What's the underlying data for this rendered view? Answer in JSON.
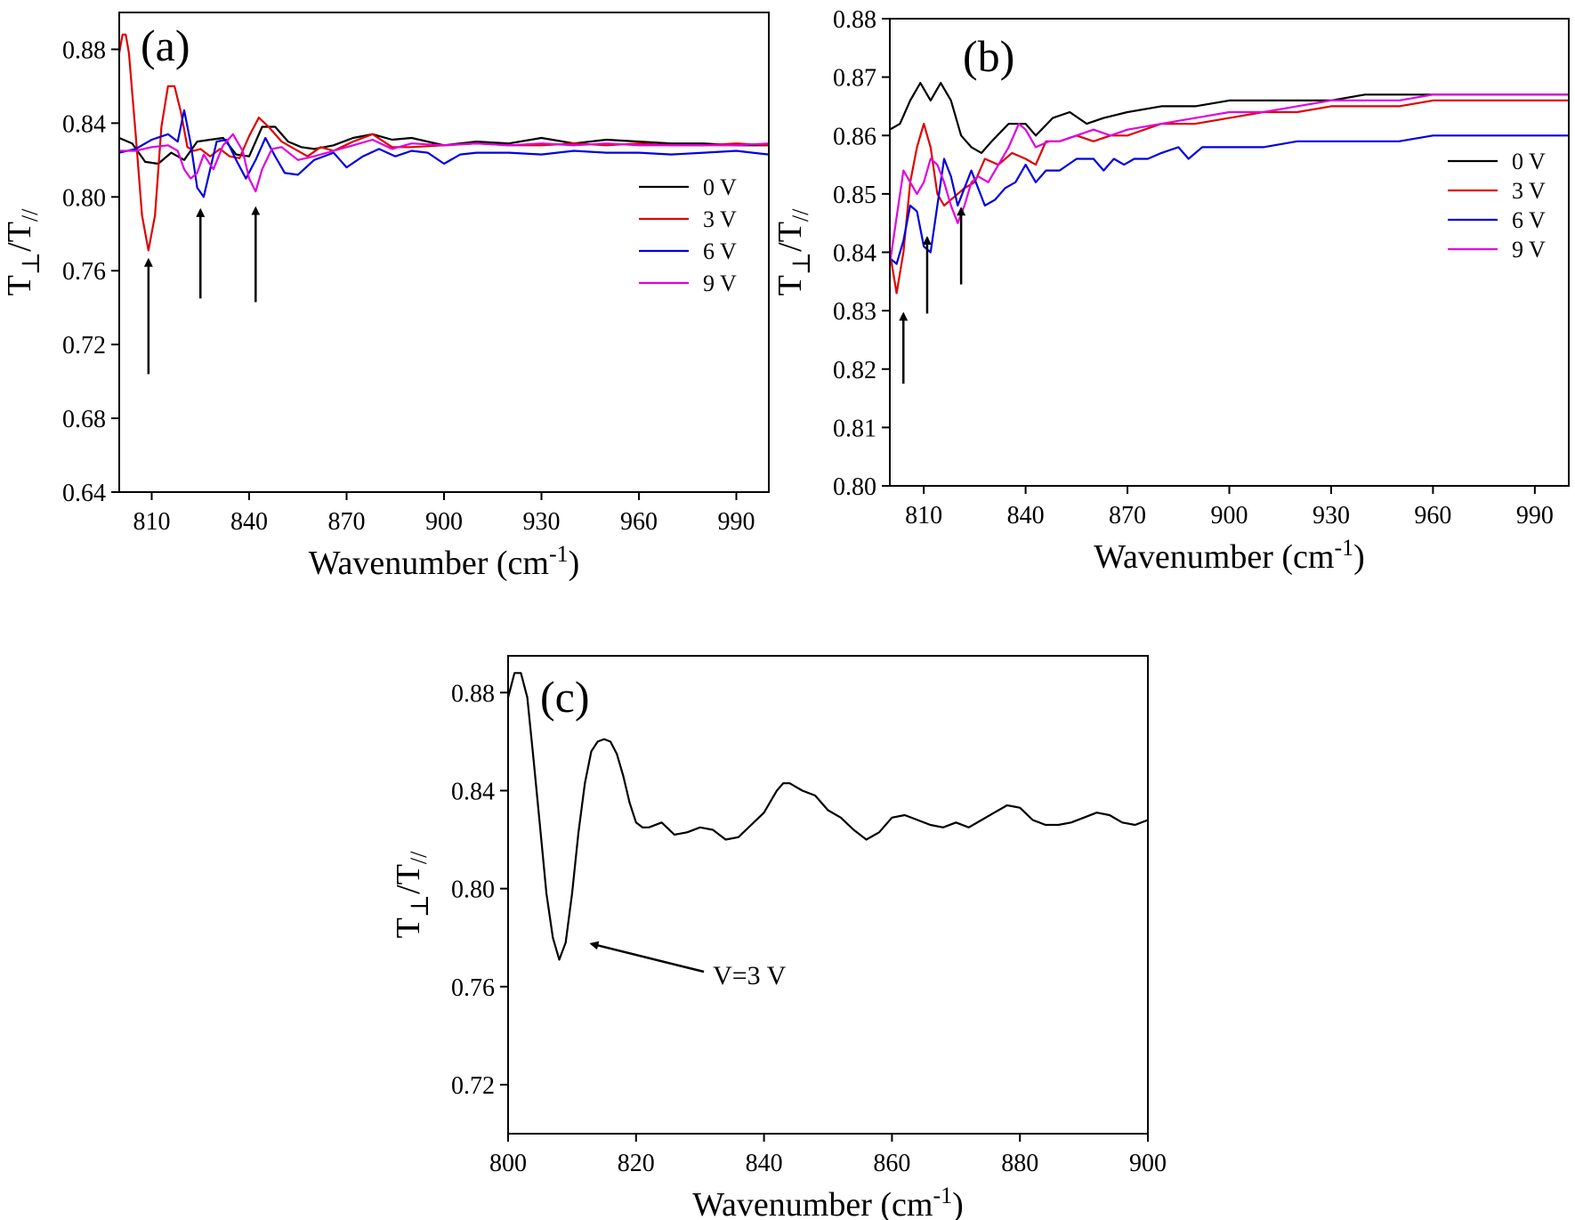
{
  "chart_data": [
    {
      "panel_label": "(a)",
      "type": "line",
      "xlabel": "Wavenumber (cm",
      "xlabel_sup": "-1",
      "xlabel_close": ")",
      "ylabel_T": "T",
      "ylabel_perp": "⊥",
      "ylabel_slash": "/T",
      "ylabel_par": "//",
      "xlim": [
        800,
        1000
      ],
      "ylim": [
        0.64,
        0.9
      ],
      "xticks": [
        "810",
        "840",
        "870",
        "900",
        "930",
        "960",
        "990"
      ],
      "xtick_values": [
        810,
        840,
        870,
        900,
        930,
        960,
        990
      ],
      "yticks": [
        "0.64",
        "0.68",
        "0.72",
        "0.76",
        "0.80",
        "0.84",
        "0.88"
      ],
      "ytick_values": [
        0.64,
        0.68,
        0.72,
        0.76,
        0.8,
        0.84,
        0.88
      ],
      "legend": "right",
      "arrows": [
        {
          "x": 809,
          "y_from": 0.704,
          "y_to": 0.766
        },
        {
          "x": 825,
          "y_from": 0.745,
          "y_to": 0.793
        },
        {
          "x": 842,
          "y_from": 0.743,
          "y_to": 0.794
        }
      ],
      "series": [
        {
          "name": "0 V",
          "color": "#000000",
          "x": [
            800,
            804,
            808,
            812,
            816,
            820,
            824,
            828,
            832,
            836,
            840,
            844,
            848,
            852,
            856,
            860,
            866,
            872,
            878,
            884,
            890,
            900,
            910,
            920,
            930,
            940,
            950,
            960,
            970,
            980,
            990,
            1000
          ],
          "y": [
            0.832,
            0.829,
            0.819,
            0.818,
            0.824,
            0.82,
            0.83,
            0.831,
            0.832,
            0.823,
            0.822,
            0.838,
            0.838,
            0.83,
            0.827,
            0.826,
            0.828,
            0.832,
            0.834,
            0.831,
            0.832,
            0.828,
            0.83,
            0.829,
            0.832,
            0.829,
            0.831,
            0.83,
            0.829,
            0.829,
            0.828,
            0.828
          ]
        },
        {
          "name": "3 V",
          "color": "#e00000",
          "x": [
            800,
            801,
            802,
            803,
            805,
            807,
            809,
            811,
            813,
            815,
            817,
            819,
            821,
            823,
            825,
            828,
            831,
            834,
            837,
            840,
            843,
            846,
            850,
            854,
            858,
            862,
            866,
            872,
            878,
            884,
            890,
            900,
            910,
            920,
            930,
            940,
            950,
            960,
            970,
            980,
            990,
            1000
          ],
          "y": [
            0.878,
            0.888,
            0.888,
            0.878,
            0.835,
            0.79,
            0.771,
            0.79,
            0.838,
            0.86,
            0.86,
            0.846,
            0.827,
            0.825,
            0.826,
            0.822,
            0.826,
            0.822,
            0.821,
            0.833,
            0.843,
            0.838,
            0.83,
            0.826,
            0.822,
            0.827,
            0.825,
            0.83,
            0.834,
            0.827,
            0.827,
            0.828,
            0.829,
            0.828,
            0.828,
            0.829,
            0.828,
            0.829,
            0.828,
            0.828,
            0.829,
            0.828
          ]
        },
        {
          "name": "6 V",
          "color": "#0000e0",
          "x": [
            800,
            805,
            810,
            815,
            818,
            820,
            822,
            824,
            826,
            828,
            830,
            833,
            836,
            839,
            842,
            845,
            848,
            851,
            855,
            860,
            866,
            870,
            875,
            880,
            885,
            890,
            895,
            900,
            905,
            910,
            920,
            930,
            940,
            950,
            960,
            970,
            980,
            990,
            995,
            1000
          ],
          "y": [
            0.824,
            0.826,
            0.831,
            0.834,
            0.83,
            0.847,
            0.829,
            0.805,
            0.8,
            0.815,
            0.83,
            0.831,
            0.82,
            0.81,
            0.82,
            0.832,
            0.822,
            0.813,
            0.812,
            0.82,
            0.824,
            0.816,
            0.822,
            0.826,
            0.822,
            0.825,
            0.824,
            0.818,
            0.823,
            0.824,
            0.824,
            0.823,
            0.825,
            0.824,
            0.824,
            0.823,
            0.824,
            0.825,
            0.824,
            0.823
          ]
        },
        {
          "name": "9 V",
          "color": "#e000e0",
          "x": [
            800,
            805,
            810,
            815,
            818,
            820,
            822,
            824,
            826,
            829,
            832,
            835,
            838,
            840,
            842,
            844,
            847,
            850,
            855,
            860,
            866,
            872,
            878,
            884,
            890,
            900,
            910,
            920,
            930,
            940,
            950,
            960,
            970,
            980,
            990,
            1000
          ],
          "y": [
            0.825,
            0.825,
            0.827,
            0.828,
            0.825,
            0.815,
            0.81,
            0.813,
            0.823,
            0.815,
            0.828,
            0.834,
            0.825,
            0.81,
            0.803,
            0.815,
            0.826,
            0.827,
            0.82,
            0.822,
            0.825,
            0.828,
            0.831,
            0.826,
            0.829,
            0.828,
            0.829,
            0.828,
            0.829,
            0.828,
            0.829,
            0.828,
            0.828,
            0.828,
            0.828,
            0.829
          ]
        }
      ]
    },
    {
      "panel_label": "(b)",
      "type": "line",
      "xlabel": "Wavenumber (cm",
      "xlabel_sup": "-1",
      "xlabel_close": ")",
      "ylabel_T": "T",
      "ylabel_perp": "⊥",
      "ylabel_slash": "/T",
      "ylabel_par": "//",
      "xlim": [
        800,
        1000
      ],
      "ylim": [
        0.8,
        0.88
      ],
      "xticks": [
        "810",
        "840",
        "870",
        "900",
        "930",
        "960",
        "990"
      ],
      "xtick_values": [
        810,
        840,
        870,
        900,
        930,
        960,
        990
      ],
      "yticks": [
        "0.80",
        "0.81",
        "0.82",
        "0.83",
        "0.84",
        "0.85",
        "0.86",
        "0.87",
        "0.88"
      ],
      "ytick_values": [
        0.8,
        0.81,
        0.82,
        0.83,
        0.84,
        0.85,
        0.86,
        0.87,
        0.88
      ],
      "legend": "right",
      "arrows": [
        {
          "x": 804,
          "y_from": 0.8175,
          "y_to": 0.8295
        },
        {
          "x": 811,
          "y_from": 0.8295,
          "y_to": 0.8425
        },
        {
          "x": 821,
          "y_from": 0.8345,
          "y_to": 0.8475
        }
      ],
      "series": [
        {
          "name": "0 V",
          "color": "#000000",
          "x": [
            800,
            803,
            806,
            809,
            812,
            815,
            818,
            821,
            824,
            827,
            830,
            835,
            840,
            843,
            848,
            853,
            858,
            863,
            870,
            880,
            890,
            900,
            910,
            920,
            930,
            940,
            950,
            960,
            970,
            980,
            990,
            1000
          ],
          "y": [
            0.861,
            0.862,
            0.866,
            0.869,
            0.866,
            0.869,
            0.866,
            0.86,
            0.858,
            0.857,
            0.859,
            0.862,
            0.862,
            0.86,
            0.863,
            0.864,
            0.862,
            0.863,
            0.864,
            0.865,
            0.865,
            0.866,
            0.866,
            0.866,
            0.866,
            0.867,
            0.867,
            0.867,
            0.867,
            0.867,
            0.867,
            0.867
          ]
        },
        {
          "name": "3 V",
          "color": "#e00000",
          "x": [
            800,
            802,
            804,
            806,
            808,
            810,
            812,
            814,
            816,
            818,
            820,
            822,
            825,
            828,
            832,
            836,
            840,
            843,
            846,
            850,
            855,
            860,
            865,
            870,
            880,
            890,
            900,
            910,
            920,
            930,
            940,
            950,
            960,
            970,
            980,
            990,
            1000
          ],
          "y": [
            0.84,
            0.833,
            0.84,
            0.852,
            0.858,
            0.862,
            0.858,
            0.85,
            0.848,
            0.849,
            0.85,
            0.851,
            0.852,
            0.856,
            0.855,
            0.857,
            0.856,
            0.855,
            0.859,
            0.859,
            0.86,
            0.859,
            0.86,
            0.86,
            0.862,
            0.862,
            0.863,
            0.864,
            0.864,
            0.865,
            0.865,
            0.865,
            0.866,
            0.866,
            0.866,
            0.866,
            0.866
          ]
        },
        {
          "name": "6 V",
          "color": "#0000e0",
          "x": [
            800,
            802,
            804,
            806,
            808,
            810,
            812,
            814,
            816,
            818,
            820,
            822,
            824,
            826,
            828,
            831,
            834,
            837,
            840,
            843,
            846,
            850,
            855,
            860,
            863,
            866,
            869,
            872,
            876,
            880,
            885,
            888,
            892,
            900,
            910,
            920,
            930,
            940,
            950,
            960,
            970,
            980,
            990,
            1000
          ],
          "y": [
            0.839,
            0.838,
            0.842,
            0.848,
            0.847,
            0.841,
            0.84,
            0.848,
            0.856,
            0.853,
            0.848,
            0.851,
            0.854,
            0.851,
            0.848,
            0.849,
            0.851,
            0.852,
            0.855,
            0.852,
            0.854,
            0.854,
            0.856,
            0.856,
            0.854,
            0.856,
            0.855,
            0.856,
            0.856,
            0.857,
            0.858,
            0.856,
            0.858,
            0.858,
            0.858,
            0.859,
            0.859,
            0.859,
            0.859,
            0.86,
            0.86,
            0.86,
            0.86,
            0.86
          ]
        },
        {
          "name": "9 V",
          "color": "#e000e0",
          "x": [
            800,
            802,
            804,
            806,
            808,
            810,
            812,
            814,
            816,
            818,
            820,
            822,
            824,
            826,
            829,
            832,
            835,
            838,
            840,
            843,
            847,
            850,
            855,
            860,
            865,
            870,
            880,
            890,
            900,
            910,
            920,
            930,
            940,
            950,
            960,
            970,
            980,
            990,
            1000
          ],
          "y": [
            0.838,
            0.846,
            0.854,
            0.852,
            0.85,
            0.852,
            0.856,
            0.855,
            0.852,
            0.848,
            0.845,
            0.848,
            0.852,
            0.853,
            0.852,
            0.855,
            0.858,
            0.862,
            0.861,
            0.858,
            0.859,
            0.859,
            0.86,
            0.861,
            0.86,
            0.861,
            0.862,
            0.863,
            0.864,
            0.864,
            0.865,
            0.866,
            0.866,
            0.866,
            0.867,
            0.867,
            0.867,
            0.867,
            0.867
          ]
        }
      ]
    },
    {
      "panel_label": "(c)",
      "type": "line",
      "xlabel": "Wavenumber (cm",
      "xlabel_sup": "-1",
      "xlabel_close": ")",
      "ylabel_T": "T",
      "ylabel_perp": "⊥",
      "ylabel_slash": "/T",
      "ylabel_par": "//",
      "xlim": [
        800,
        900
      ],
      "ylim": [
        0.7,
        0.895
      ],
      "xticks": [
        "800",
        "820",
        "840",
        "860",
        "880",
        "900"
      ],
      "xtick_values": [
        800,
        820,
        840,
        860,
        880,
        900
      ],
      "yticks": [
        "0.72",
        "0.76",
        "0.80",
        "0.84",
        "0.88"
      ],
      "ytick_values": [
        0.72,
        0.76,
        0.8,
        0.84,
        0.88
      ],
      "annotation": {
        "text": "V=3 V",
        "arrow_to_x": 813,
        "arrow_to_y": 0.7775,
        "text_x": 832,
        "text_y": 0.761
      },
      "series": [
        {
          "name": "",
          "color": "#000000",
          "x": [
            800,
            801,
            802,
            803,
            804,
            805,
            806,
            807,
            808,
            809,
            810,
            811,
            812,
            813,
            814,
            815,
            816,
            817,
            818,
            819,
            820,
            821,
            822,
            824,
            826,
            828,
            830,
            832,
            834,
            836,
            838,
            840,
            842,
            843,
            844,
            846,
            848,
            850,
            852,
            854,
            856,
            858,
            860,
            862,
            864,
            866,
            868,
            870,
            872,
            874,
            876,
            878,
            880,
            882,
            884,
            886,
            888,
            890,
            892,
            894,
            896,
            898,
            900
          ],
          "y": [
            0.878,
            0.888,
            0.888,
            0.878,
            0.852,
            0.825,
            0.798,
            0.78,
            0.771,
            0.778,
            0.798,
            0.823,
            0.843,
            0.856,
            0.86,
            0.861,
            0.86,
            0.855,
            0.846,
            0.835,
            0.827,
            0.825,
            0.825,
            0.827,
            0.822,
            0.823,
            0.825,
            0.824,
            0.82,
            0.821,
            0.826,
            0.831,
            0.84,
            0.843,
            0.843,
            0.84,
            0.838,
            0.832,
            0.829,
            0.824,
            0.82,
            0.823,
            0.829,
            0.83,
            0.828,
            0.826,
            0.825,
            0.827,
            0.825,
            0.828,
            0.831,
            0.834,
            0.833,
            0.828,
            0.826,
            0.826,
            0.827,
            0.829,
            0.831,
            0.83,
            0.827,
            0.826,
            0.828
          ]
        }
      ]
    }
  ]
}
